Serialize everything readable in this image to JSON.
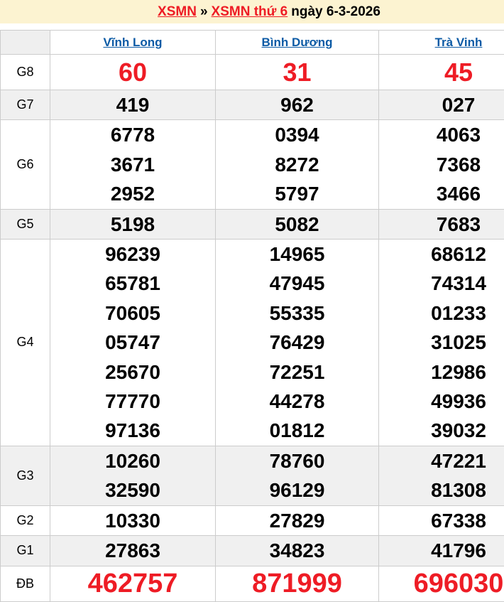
{
  "header": {
    "region_link": "XSMN",
    "separator": "»",
    "draw_link": "XSMN thứ 6",
    "date_text": "ngày 6-3-2026"
  },
  "table": {
    "provinces": [
      "Vĩnh Long",
      "Bình Dương",
      "Trà Vinh"
    ],
    "rows": [
      {
        "key": "g8",
        "label": "G8",
        "big": true,
        "values": [
          [
            "60"
          ],
          [
            "31"
          ],
          [
            "45"
          ]
        ]
      },
      {
        "key": "g7",
        "label": "G7",
        "big": false,
        "values": [
          [
            "419"
          ],
          [
            "962"
          ],
          [
            "027"
          ]
        ]
      },
      {
        "key": "g6",
        "label": "G6",
        "big": false,
        "values": [
          [
            "6778",
            "3671",
            "2952"
          ],
          [
            "0394",
            "8272",
            "5797"
          ],
          [
            "4063",
            "7368",
            "3466"
          ]
        ]
      },
      {
        "key": "g5",
        "label": "G5",
        "big": false,
        "values": [
          [
            "5198"
          ],
          [
            "5082"
          ],
          [
            "7683"
          ]
        ]
      },
      {
        "key": "g4",
        "label": "G4",
        "big": false,
        "values": [
          [
            "96239",
            "65781",
            "70605",
            "05747",
            "25670",
            "77770",
            "97136"
          ],
          [
            "14965",
            "47945",
            "55335",
            "76429",
            "72251",
            "44278",
            "01812"
          ],
          [
            "68612",
            "74314",
            "01233",
            "31025",
            "12986",
            "49936",
            "39032"
          ]
        ]
      },
      {
        "key": "g3",
        "label": "G3",
        "big": false,
        "values": [
          [
            "10260",
            "32590"
          ],
          [
            "78760",
            "96129"
          ],
          [
            "47221",
            "81308"
          ]
        ]
      },
      {
        "key": "g2",
        "label": "G2",
        "big": false,
        "values": [
          [
            "10330"
          ],
          [
            "27829"
          ],
          [
            "67338"
          ]
        ]
      },
      {
        "key": "g1",
        "label": "G1",
        "big": false,
        "values": [
          [
            "27863"
          ],
          [
            "34823"
          ],
          [
            "41796"
          ]
        ]
      },
      {
        "key": "db",
        "label": "ĐB",
        "big": true,
        "values": [
          [
            "462757"
          ],
          [
            "871999"
          ],
          [
            "696030"
          ]
        ]
      }
    ]
  },
  "colors": {
    "title_bar_bg": "#fcf3d1",
    "accent_red": "#ee1c25",
    "link_blue": "#0b5aa5",
    "alt_row_bg": "#f0f0f0",
    "border": "#cccccc"
  }
}
